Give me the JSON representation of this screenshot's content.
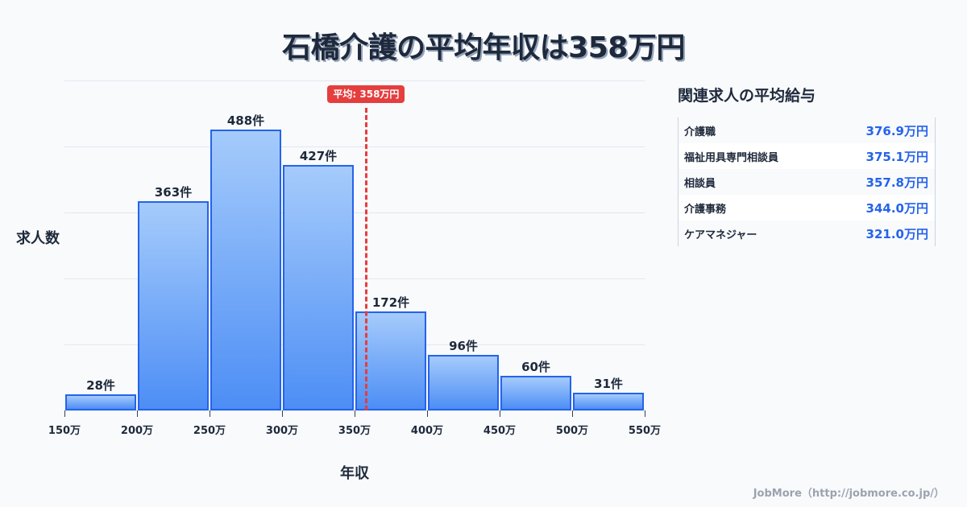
{
  "title": "石橋介護の平均年収は358万円",
  "chart_data": {
    "type": "bar",
    "title": "石橋介護の平均年収は358万円",
    "xlabel": "年収",
    "ylabel": "求人数",
    "bins": [
      [
        150,
        200
      ],
      [
        200,
        250
      ],
      [
        250,
        300
      ],
      [
        300,
        350
      ],
      [
        350,
        400
      ],
      [
        400,
        450
      ],
      [
        450,
        500
      ],
      [
        500,
        550
      ]
    ],
    "categories": [
      "150-200万",
      "200-250万",
      "250-300万",
      "300-350万",
      "350-400万",
      "400-450万",
      "450-500万",
      "500-550万"
    ],
    "values": [
      28,
      363,
      488,
      427,
      172,
      96,
      60,
      31
    ],
    "value_labels": [
      "28件",
      "363件",
      "488件",
      "427件",
      "172件",
      "96件",
      "60件",
      "31件"
    ],
    "x_ticks": [
      "150万",
      "200万",
      "250万",
      "300万",
      "350万",
      "400万",
      "450万",
      "500万",
      "550万"
    ],
    "xlim": [
      150,
      550
    ],
    "grid": true,
    "mean": 358,
    "mean_label": "平均: 358万円",
    "mean_color": "#e53e3e",
    "bar_color": "#4d8ef5",
    "bar_border_color": "#2563eb"
  },
  "sidebar": {
    "title": "関連求人の平均給与",
    "rows": [
      {
        "name": "介護職",
        "value": "376.9万円"
      },
      {
        "name": "福祉用具専門相談員",
        "value": "375.1万円"
      },
      {
        "name": "相談員",
        "value": "357.8万円"
      },
      {
        "name": "介護事務",
        "value": "344.0万円"
      },
      {
        "name": "ケアマネジャー",
        "value": "321.0万円"
      }
    ]
  },
  "footer": "JobMore（http://jobmore.co.jp/）"
}
